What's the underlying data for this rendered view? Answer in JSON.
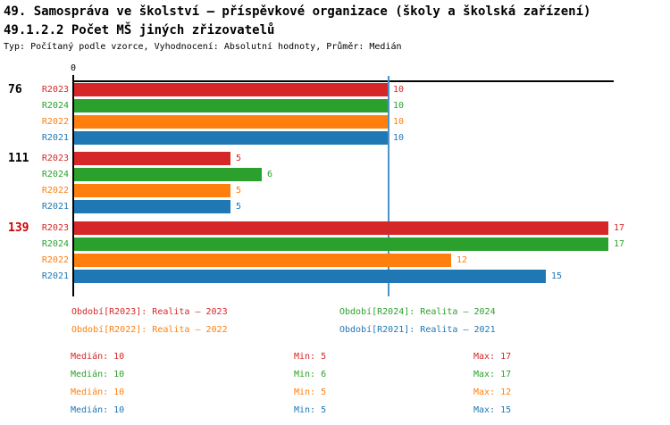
{
  "header": {
    "title": "49. Samospráva ve školství – příspěvkové organizace (školy a školská zařízení)",
    "subtitle": "49.1.2.2 Počet MŠ jiných zřizovatelů",
    "meta": "Typ: Počítaný podle vzorce, Vyhodnocení: Absolutní hodnoty, Průměr: Medián"
  },
  "chart_data": {
    "type": "bar",
    "orientation": "horizontal",
    "title": "49.1.2.2 Počet MŠ jiných zřizovatelů",
    "categories": [
      "76",
      "111",
      "139"
    ],
    "category_colors": [
      "#000000",
      "#000000",
      "#cc0000"
    ],
    "series": [
      {
        "name": "R2023",
        "color": "#d62728",
        "values": [
          10,
          5,
          17
        ]
      },
      {
        "name": "R2024",
        "color": "#2ca02c",
        "values": [
          10,
          6,
          17
        ]
      },
      {
        "name": "R2022",
        "color": "#ff7f0e",
        "values": [
          10,
          5,
          12
        ]
      },
      {
        "name": "R2021",
        "color": "#1f77b4",
        "values": [
          10,
          5,
          15
        ]
      }
    ],
    "xlim": [
      0,
      17.2
    ],
    "x_zero_label": "0",
    "gridlines": false,
    "median_line": {
      "value": 10,
      "color": "#4b94c9"
    },
    "legend_position": "bottom"
  },
  "legend_items": [
    {
      "text": "Období[R2023]: Realita – 2023",
      "color": "#d62728"
    },
    {
      "text": "Období[R2024]: Realita – 2024",
      "color": "#2ca02c"
    },
    {
      "text": "Období[R2022]: Realita – 2022",
      "color": "#ff7f0e"
    },
    {
      "text": "Období[R2021]: Realita – 2021",
      "color": "#1f77b4"
    }
  ],
  "stats_rows": [
    {
      "median": "Medián: 10",
      "min": "Min: 5",
      "max": "Max: 17",
      "color": "#d62728"
    },
    {
      "median": "Medián: 10",
      "min": "Min: 6",
      "max": "Max: 17",
      "color": "#2ca02c"
    },
    {
      "median": "Medián: 10",
      "min": "Min: 5",
      "max": "Max: 12",
      "color": "#ff7f0e"
    },
    {
      "median": "Medián: 10",
      "min": "Min: 5",
      "max": "Max: 15",
      "color": "#1f77b4"
    }
  ]
}
